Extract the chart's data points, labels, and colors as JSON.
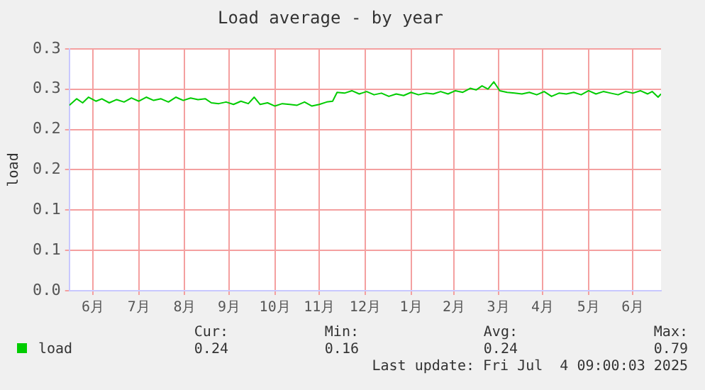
{
  "chart_data": {
    "type": "line",
    "title": "Load average - by year",
    "ylabel": "load",
    "xlim": [
      "2024-05-30",
      "2025-07-04"
    ],
    "xticks": [
      {
        "value": "2024-06-15",
        "label": "6月"
      },
      {
        "value": "2024-07-16",
        "label": "7月"
      },
      {
        "value": "2024-08-16",
        "label": "8月"
      },
      {
        "value": "2024-09-15",
        "label": "9月"
      },
      {
        "value": "2024-10-16",
        "label": "10月"
      },
      {
        "value": "2024-11-15",
        "label": "11月"
      },
      {
        "value": "2024-12-16",
        "label": "12月"
      },
      {
        "value": "2025-01-16",
        "label": "1月"
      },
      {
        "value": "2025-02-14",
        "label": "2月"
      },
      {
        "value": "2025-03-16",
        "label": "3月"
      },
      {
        "value": "2025-04-15",
        "label": "4月"
      },
      {
        "value": "2025-05-16",
        "label": "5月"
      },
      {
        "value": "2025-06-15",
        "label": "6月"
      }
    ],
    "ylim": [
      0,
      0.3
    ],
    "yticks": [
      {
        "value": 0,
        "label": "0.0"
      },
      {
        "value": 0.05,
        "label": "0.1"
      },
      {
        "value": 0.1,
        "label": "0.1"
      },
      {
        "value": 0.15,
        "label": "0.2"
      },
      {
        "value": 0.2,
        "label": "0.2"
      },
      {
        "value": 0.25,
        "label": "0.3"
      },
      {
        "value": 0.3,
        "label": "0.3"
      }
    ],
    "grid": true,
    "legend": "bottom left",
    "marker": "none",
    "line_style": "solid",
    "x": [
      "2024-05-30",
      "2024-06-04",
      "2024-06-08",
      "2024-06-12",
      "2024-06-17",
      "2024-06-21",
      "2024-06-26",
      "2024-07-01",
      "2024-07-06",
      "2024-07-11",
      "2024-07-16",
      "2024-07-21",
      "2024-07-26",
      "2024-07-31",
      "2024-08-05",
      "2024-08-10",
      "2024-08-15",
      "2024-08-20",
      "2024-08-25",
      "2024-08-30",
      "2024-09-03",
      "2024-09-08",
      "2024-09-13",
      "2024-09-18",
      "2024-09-23",
      "2024-09-28",
      "2024-10-02",
      "2024-10-06",
      "2024-10-11",
      "2024-10-16",
      "2024-10-21",
      "2024-10-26",
      "2024-10-31",
      "2024-11-05",
      "2024-11-10",
      "2024-11-15",
      "2024-11-20",
      "2024-11-24",
      "2024-11-27",
      "2024-12-02",
      "2024-12-07",
      "2024-12-12",
      "2024-12-17",
      "2024-12-22",
      "2024-12-27",
      "2025-01-01",
      "2025-01-06",
      "2025-01-11",
      "2025-01-16",
      "2025-01-21",
      "2025-01-26",
      "2025-01-31",
      "2025-02-05",
      "2025-02-10",
      "2025-02-15",
      "2025-02-20",
      "2025-02-25",
      "2025-03-01",
      "2025-03-05",
      "2025-03-09",
      "2025-03-13",
      "2025-03-17",
      "2025-03-22",
      "2025-03-27",
      "2025-04-01",
      "2025-04-06",
      "2025-04-11",
      "2025-04-16",
      "2025-04-21",
      "2025-04-26",
      "2025-05-01",
      "2025-05-06",
      "2025-05-11",
      "2025-05-16",
      "2025-05-21",
      "2025-05-26",
      "2025-05-31",
      "2025-06-05",
      "2025-06-10",
      "2025-06-15",
      "2025-06-20",
      "2025-06-25",
      "2025-06-28",
      "2025-07-02",
      "2025-07-04"
    ],
    "series": [
      {
        "name": "load",
        "color": "#00cc00",
        "values": [
          0.23,
          0.238,
          0.233,
          0.24,
          0.235,
          0.238,
          0.233,
          0.237,
          0.234,
          0.239,
          0.235,
          0.24,
          0.236,
          0.238,
          0.234,
          0.24,
          0.236,
          0.239,
          0.237,
          0.238,
          0.233,
          0.232,
          0.234,
          0.231,
          0.235,
          0.232,
          0.24,
          0.231,
          0.233,
          0.229,
          0.232,
          0.231,
          0.23,
          0.234,
          0.229,
          0.231,
          0.234,
          0.235,
          0.246,
          0.245,
          0.248,
          0.244,
          0.247,
          0.243,
          0.245,
          0.241,
          0.244,
          0.242,
          0.246,
          0.243,
          0.245,
          0.244,
          0.247,
          0.244,
          0.248,
          0.246,
          0.251,
          0.249,
          0.254,
          0.25,
          0.259,
          0.248,
          0.246,
          0.245,
          0.244,
          0.246,
          0.243,
          0.247,
          0.241,
          0.245,
          0.244,
          0.246,
          0.243,
          0.248,
          0.244,
          0.247,
          0.245,
          0.243,
          0.247,
          0.245,
          0.248,
          0.244,
          0.247,
          0.24,
          0.244
        ]
      }
    ],
    "annotations": [
      "Cur:",
      "0.24",
      "Min:",
      "0.16",
      "Avg:",
      "0.24",
      "Max:",
      "0.79",
      "Last update: Fri Jul  4 09:00:03 2025"
    ]
  }
}
